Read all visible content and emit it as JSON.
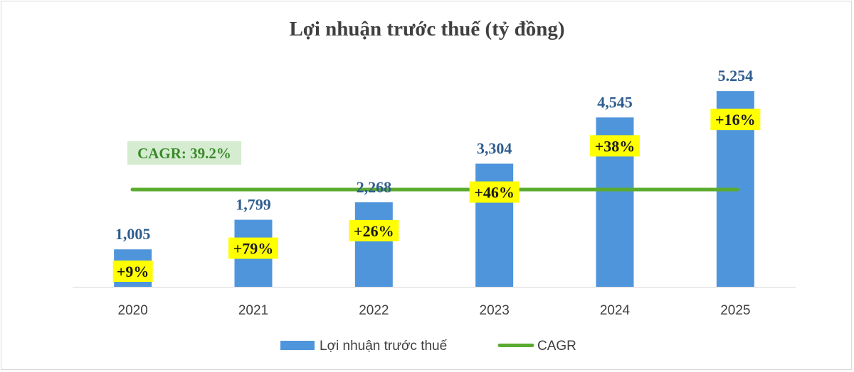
{
  "chart_data": {
    "type": "bar",
    "title": "Lợi nhuận trước thuế (tỷ đồng)",
    "categories": [
      "2020",
      "2021",
      "2022",
      "2023",
      "2024",
      "2025"
    ],
    "series": [
      {
        "name": "Lợi nhuận trước thuế",
        "values": [
          1005,
          1799,
          2268,
          3304,
          4545,
          5254
        ],
        "labels": [
          "1,005",
          "1,799",
          "2,268",
          "3,304",
          "4,545",
          "5.254"
        ],
        "color": "#4f95db"
      }
    ],
    "growth_labels": [
      "+9%",
      "+79%",
      "+26%",
      "+46%",
      "+38%",
      "+16%"
    ],
    "growth_label_color": "#ffff00",
    "cagr": {
      "name": "CAGR",
      "label": "CAGR: 39.2%",
      "value_pct": 39.2,
      "color": "#5aab2e",
      "badge_color": "#d5ecd0"
    },
    "ylim": [
      0,
      5600
    ],
    "grid": false,
    "legend_position": "bottom"
  }
}
